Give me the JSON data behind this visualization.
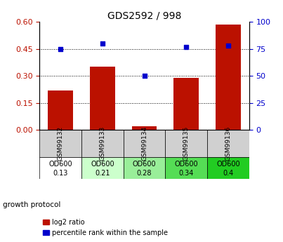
{
  "title": "GDS2592 / 998",
  "samples": [
    "GSM99132",
    "GSM99133",
    "GSM99134",
    "GSM99135",
    "GSM99136"
  ],
  "log2_ratio": [
    0.22,
    0.35,
    0.02,
    0.29,
    0.585
  ],
  "percentile_rank": [
    75,
    80,
    50,
    77,
    78
  ],
  "left_ylim": [
    0,
    0.6
  ],
  "right_ylim": [
    0,
    100
  ],
  "left_yticks": [
    0,
    0.15,
    0.3,
    0.45,
    0.6
  ],
  "right_yticks": [
    0,
    25,
    50,
    75,
    100
  ],
  "bar_color": "#bb1100",
  "scatter_color": "#0000cc",
  "growth_protocol_label": "growth protocol",
  "od600_labels": [
    "OD600",
    "OD600",
    "OD600",
    "OD600",
    "OD600"
  ],
  "od600_values": [
    "0.13",
    "0.21",
    "0.28",
    "0.34",
    "0.4"
  ],
  "cell_colors_gsm": [
    "#d0d0d0",
    "#d0d0d0",
    "#d0d0d0",
    "#d0d0d0",
    "#d0d0d0"
  ],
  "cell_colors_od": [
    "#ffffff",
    "#ccffcc",
    "#99ee99",
    "#55dd55",
    "#22cc22"
  ],
  "legend_items": [
    "log2 ratio",
    "percentile rank within the sample"
  ],
  "legend_colors": [
    "#bb1100",
    "#0000cc"
  ],
  "bar_width": 0.6,
  "figsize": [
    4.03,
    3.45
  ],
  "dpi": 100
}
